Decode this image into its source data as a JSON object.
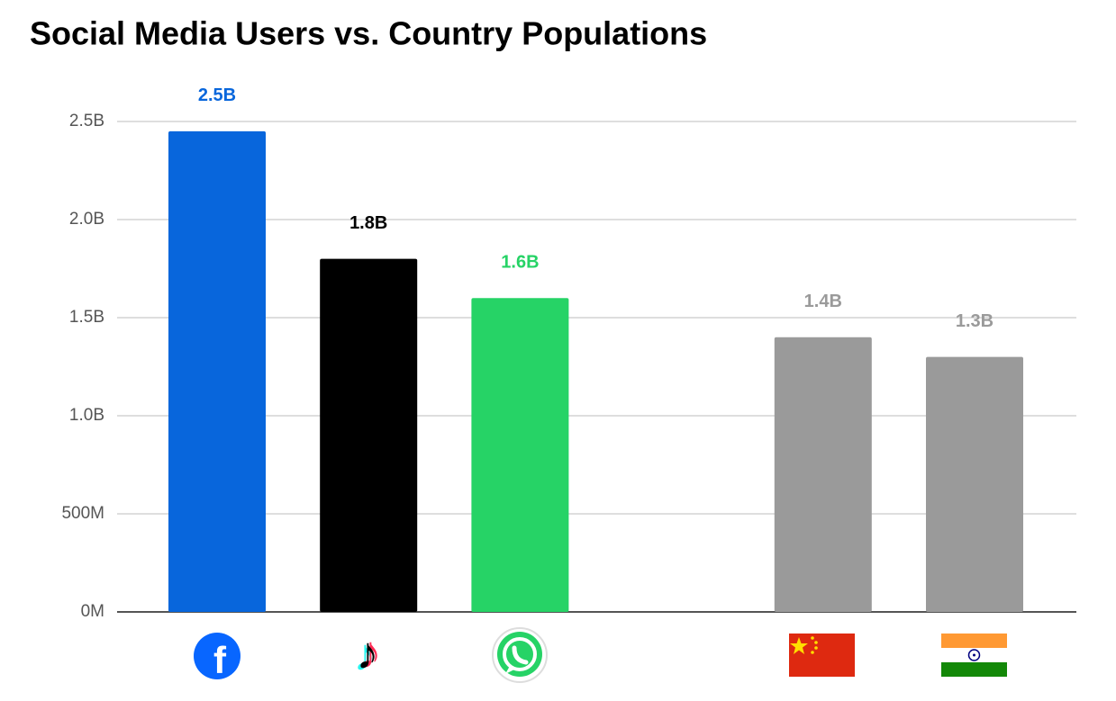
{
  "chart_data": {
    "type": "bar",
    "title": "Social Media Users vs. Country Populations",
    "categories": [
      null,
      null,
      null,
      null,
      null,
      null
    ],
    "values": [
      2450000000,
      1800000000,
      1600000000,
      null,
      1400000000,
      1300000000
    ],
    "value_labels": [
      "2.5B",
      "1.8B",
      "1.6B",
      null,
      "1.4B",
      "1.3B"
    ],
    "colors": [
      "#0866dc",
      "#000000",
      "#26d366",
      null,
      "#9a9a9a",
      "#9a9a9a"
    ],
    "ylim": [
      0,
      2500000000
    ],
    "yticks": [
      {
        "value": 0,
        "label": "0M"
      },
      {
        "value": 500000000,
        "label": "500M"
      },
      {
        "value": 1000000000,
        "label": "1.0B"
      },
      {
        "value": 1500000000,
        "label": "1.5B"
      },
      {
        "value": 2000000000,
        "label": "2.0B"
      },
      {
        "value": 2500000000,
        "label": "2.5B"
      }
    ],
    "grid": true
  }
}
